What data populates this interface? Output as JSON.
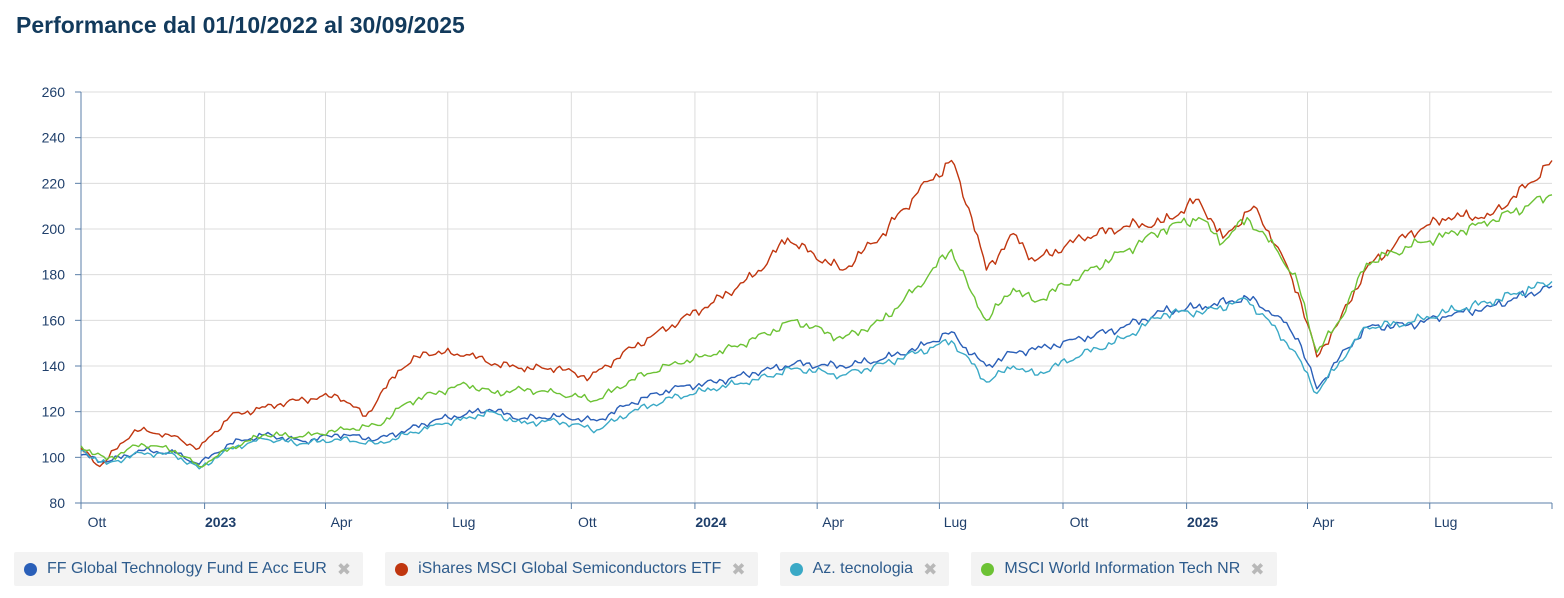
{
  "title": "Performance dal 01/10/2022 al 30/09/2025",
  "chart_data": {
    "type": "line",
    "title": "Performance dal 01/10/2022 al 30/09/2025",
    "xlabel": "",
    "ylabel": "",
    "x_range": [
      "2022-10-01",
      "2025-09-30"
    ],
    "ylim": [
      80,
      260
    ],
    "yticks": [
      80,
      100,
      120,
      140,
      160,
      180,
      200,
      220,
      240,
      260
    ],
    "xticks": [
      {
        "label": "Ott",
        "date": "2022-10-01",
        "bold": false
      },
      {
        "label": "2023",
        "date": "2023-01-01",
        "bold": true
      },
      {
        "label": "Apr",
        "date": "2023-04-01",
        "bold": false
      },
      {
        "label": "Lug",
        "date": "2023-07-01",
        "bold": false
      },
      {
        "label": "Ott",
        "date": "2023-10-01",
        "bold": false
      },
      {
        "label": "2024",
        "date": "2024-01-01",
        "bold": true
      },
      {
        "label": "Apr",
        "date": "2024-04-01",
        "bold": false
      },
      {
        "label": "Lug",
        "date": "2024-07-01",
        "bold": false
      },
      {
        "label": "Ott",
        "date": "2024-10-01",
        "bold": false
      },
      {
        "label": "2025",
        "date": "2025-01-01",
        "bold": true
      },
      {
        "label": "Apr",
        "date": "2025-04-01",
        "bold": false
      },
      {
        "label": "Lug",
        "date": "2025-07-01",
        "bold": false
      }
    ],
    "grid": true,
    "legend_position": "bottom",
    "series": [
      {
        "name": "FF Global Technology Fund E Acc EUR",
        "color": "#2a5fb8",
        "points": [
          [
            "2022-10-01",
            101
          ],
          [
            "2022-10-20",
            98
          ],
          [
            "2022-11-15",
            103
          ],
          [
            "2022-12-10",
            102
          ],
          [
            "2022-12-28",
            97
          ],
          [
            "2023-01-20",
            106
          ],
          [
            "2023-02-15",
            110
          ],
          [
            "2023-03-15",
            107
          ],
          [
            "2023-04-10",
            110
          ],
          [
            "2023-05-10",
            108
          ],
          [
            "2023-06-01",
            112
          ],
          [
            "2023-06-20",
            116
          ],
          [
            "2023-07-15",
            119
          ],
          [
            "2023-08-01",
            121
          ],
          [
            "2023-08-25",
            117
          ],
          [
            "2023-09-20",
            118
          ],
          [
            "2023-10-20",
            116
          ],
          [
            "2023-11-15",
            124
          ],
          [
            "2023-12-15",
            130
          ],
          [
            "2024-01-15",
            133
          ],
          [
            "2024-02-15",
            137
          ],
          [
            "2024-03-15",
            141
          ],
          [
            "2024-04-20",
            140
          ],
          [
            "2024-05-20",
            143
          ],
          [
            "2024-06-15",
            148
          ],
          [
            "2024-07-10",
            155
          ],
          [
            "2024-07-25",
            145
          ],
          [
            "2024-08-05",
            140
          ],
          [
            "2024-08-25",
            146
          ],
          [
            "2024-09-15",
            148
          ],
          [
            "2024-10-15",
            152
          ],
          [
            "2024-11-15",
            157
          ],
          [
            "2024-12-15",
            164
          ],
          [
            "2025-01-15",
            166
          ],
          [
            "2025-02-15",
            170
          ],
          [
            "2025-03-10",
            162
          ],
          [
            "2025-03-25",
            152
          ],
          [
            "2025-04-08",
            130
          ],
          [
            "2025-04-25",
            144
          ],
          [
            "2025-05-15",
            157
          ],
          [
            "2025-06-15",
            158
          ],
          [
            "2025-07-15",
            162
          ],
          [
            "2025-08-15",
            166
          ],
          [
            "2025-09-30",
            175
          ]
        ]
      },
      {
        "name": "iShares MSCI Global Semiconductors ETF",
        "color": "#c0360f",
        "points": [
          [
            "2022-10-01",
            104
          ],
          [
            "2022-10-15",
            96
          ],
          [
            "2022-11-10",
            112
          ],
          [
            "2022-12-05",
            110
          ],
          [
            "2022-12-28",
            104
          ],
          [
            "2023-01-20",
            118
          ],
          [
            "2023-02-15",
            122
          ],
          [
            "2023-03-10",
            125
          ],
          [
            "2023-04-10",
            127
          ],
          [
            "2023-05-01",
            118
          ],
          [
            "2023-05-25",
            138
          ],
          [
            "2023-06-15",
            146
          ],
          [
            "2023-07-15",
            145
          ],
          [
            "2023-08-05",
            141
          ],
          [
            "2023-08-25",
            139
          ],
          [
            "2023-09-20",
            139
          ],
          [
            "2023-10-15",
            135
          ],
          [
            "2023-11-15",
            148
          ],
          [
            "2023-12-15",
            158
          ],
          [
            "2024-01-15",
            168
          ],
          [
            "2024-02-15",
            180
          ],
          [
            "2024-03-10",
            196
          ],
          [
            "2024-03-25",
            190
          ],
          [
            "2024-04-20",
            182
          ],
          [
            "2024-05-20",
            198
          ],
          [
            "2024-06-15",
            216
          ],
          [
            "2024-07-10",
            230
          ],
          [
            "2024-07-25",
            205
          ],
          [
            "2024-08-05",
            182
          ],
          [
            "2024-08-25",
            198
          ],
          [
            "2024-09-10",
            186
          ],
          [
            "2024-10-15",
            196
          ],
          [
            "2024-11-15",
            201
          ],
          [
            "2024-12-15",
            203
          ],
          [
            "2025-01-10",
            213
          ],
          [
            "2025-01-28",
            196
          ],
          [
            "2025-02-20",
            210
          ],
          [
            "2025-03-10",
            192
          ],
          [
            "2025-03-25",
            172
          ],
          [
            "2025-04-08",
            144
          ],
          [
            "2025-04-25",
            160
          ],
          [
            "2025-05-15",
            183
          ],
          [
            "2025-06-15",
            198
          ],
          [
            "2025-07-15",
            205
          ],
          [
            "2025-08-15",
            206
          ],
          [
            "2025-09-10",
            218
          ],
          [
            "2025-09-30",
            230
          ]
        ]
      },
      {
        "name": "Az. tecnologia",
        "color": "#3aa9c6",
        "points": [
          [
            "2022-10-01",
            103
          ],
          [
            "2022-10-20",
            97
          ],
          [
            "2022-11-15",
            102
          ],
          [
            "2022-12-10",
            101
          ],
          [
            "2022-12-28",
            95
          ],
          [
            "2023-01-20",
            104
          ],
          [
            "2023-02-15",
            108
          ],
          [
            "2023-03-15",
            106
          ],
          [
            "2023-04-10",
            108
          ],
          [
            "2023-05-10",
            106
          ],
          [
            "2023-06-01",
            110
          ],
          [
            "2023-06-20",
            114
          ],
          [
            "2023-07-15",
            117
          ],
          [
            "2023-08-01",
            120
          ],
          [
            "2023-08-25",
            115
          ],
          [
            "2023-09-20",
            116
          ],
          [
            "2023-10-20",
            112
          ],
          [
            "2023-11-15",
            120
          ],
          [
            "2023-12-15",
            126
          ],
          [
            "2024-01-15",
            130
          ],
          [
            "2024-02-15",
            134
          ],
          [
            "2024-03-15",
            139
          ],
          [
            "2024-04-20",
            136
          ],
          [
            "2024-05-20",
            141
          ],
          [
            "2024-06-15",
            146
          ],
          [
            "2024-07-10",
            151
          ],
          [
            "2024-07-25",
            141
          ],
          [
            "2024-08-05",
            133
          ],
          [
            "2024-08-25",
            140
          ],
          [
            "2024-09-10",
            136
          ],
          [
            "2024-10-15",
            145
          ],
          [
            "2024-11-15",
            152
          ],
          [
            "2024-12-15",
            163
          ],
          [
            "2025-01-15",
            164
          ],
          [
            "2025-02-15",
            169
          ],
          [
            "2025-03-10",
            155
          ],
          [
            "2025-03-25",
            144
          ],
          [
            "2025-04-08",
            128
          ],
          [
            "2025-04-25",
            142
          ],
          [
            "2025-05-15",
            157
          ],
          [
            "2025-06-15",
            159
          ],
          [
            "2025-07-15",
            164
          ],
          [
            "2025-08-15",
            168
          ],
          [
            "2025-09-30",
            177
          ]
        ]
      },
      {
        "name": "MSCI World Information Tech NR",
        "color": "#6cc234",
        "points": [
          [
            "2022-10-01",
            105
          ],
          [
            "2022-10-20",
            99
          ],
          [
            "2022-11-15",
            106
          ],
          [
            "2022-12-10",
            103
          ],
          [
            "2022-12-28",
            96
          ],
          [
            "2023-01-20",
            104
          ],
          [
            "2023-02-15",
            110
          ],
          [
            "2023-03-15",
            109
          ],
          [
            "2023-04-10",
            112
          ],
          [
            "2023-05-10",
            114
          ],
          [
            "2023-06-01",
            124
          ],
          [
            "2023-06-20",
            128
          ],
          [
            "2023-07-15",
            132
          ],
          [
            "2023-08-05",
            128
          ],
          [
            "2023-08-25",
            130
          ],
          [
            "2023-09-20",
            128
          ],
          [
            "2023-10-20",
            125
          ],
          [
            "2023-11-15",
            134
          ],
          [
            "2023-12-15",
            141
          ],
          [
            "2024-01-15",
            145
          ],
          [
            "2024-02-15",
            152
          ],
          [
            "2024-03-15",
            160
          ],
          [
            "2024-04-20",
            152
          ],
          [
            "2024-05-20",
            160
          ],
          [
            "2024-06-15",
            175
          ],
          [
            "2024-07-10",
            191
          ],
          [
            "2024-07-25",
            172
          ],
          [
            "2024-08-05",
            160
          ],
          [
            "2024-08-25",
            174
          ],
          [
            "2024-09-10",
            168
          ],
          [
            "2024-10-15",
            180
          ],
          [
            "2024-11-15",
            190
          ],
          [
            "2024-12-15",
            200
          ],
          [
            "2025-01-10",
            205
          ],
          [
            "2025-01-28",
            194
          ],
          [
            "2025-02-15",
            205
          ],
          [
            "2025-03-10",
            190
          ],
          [
            "2025-03-25",
            176
          ],
          [
            "2025-04-08",
            146
          ],
          [
            "2025-04-25",
            160
          ],
          [
            "2025-05-15",
            185
          ],
          [
            "2025-06-15",
            192
          ],
          [
            "2025-07-15",
            198
          ],
          [
            "2025-08-15",
            203
          ],
          [
            "2025-09-10",
            210
          ],
          [
            "2025-09-30",
            215
          ]
        ]
      }
    ]
  },
  "legend": [
    {
      "label": "FF Global Technology Fund E Acc EUR",
      "color": "#2a5fb8",
      "remove_icon": "close-icon"
    },
    {
      "label": "iShares MSCI Global Semiconductors ETF",
      "color": "#c0360f",
      "remove_icon": "close-icon"
    },
    {
      "label": "Az. tecnologia",
      "color": "#3aa9c6",
      "remove_icon": "close-icon"
    },
    {
      "label": "MSCI World Information Tech NR",
      "color": "#6cc234",
      "remove_icon": "close-icon"
    }
  ]
}
